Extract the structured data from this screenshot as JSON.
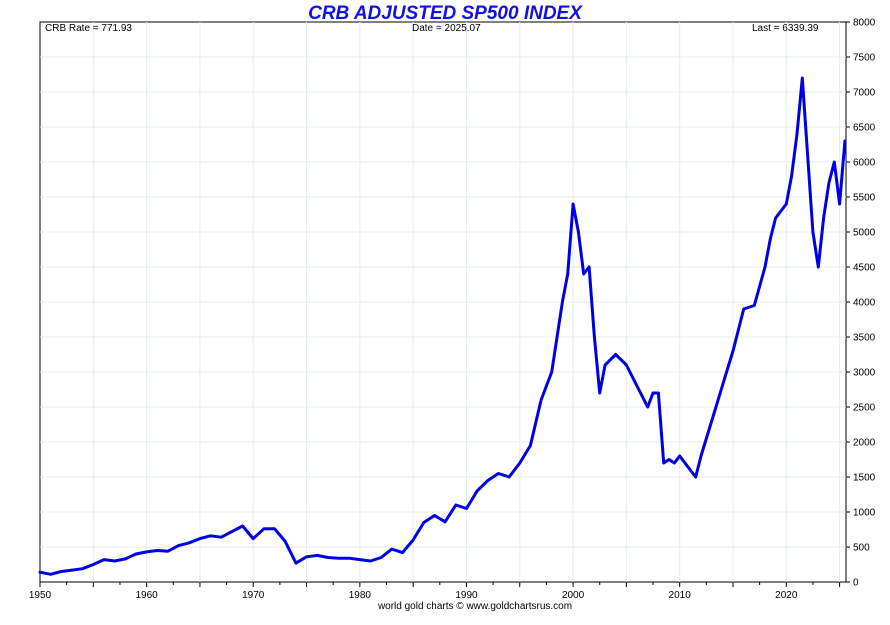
{
  "header": {
    "title": "CRB ADJUSTED SP500 INDEX",
    "crb_rate": "CRB Rate = 771.93",
    "date": "Date = 2025.07",
    "last": "Last = 6339.39"
  },
  "footer": {
    "credit": "world gold charts © www.goldchartsrus.com"
  },
  "chart_data": {
    "type": "line",
    "title": "CRB ADJUSTED SP500 INDEX",
    "xlabel": "",
    "ylabel": "",
    "xlim": [
      1950,
      2025.6
    ],
    "ylim": [
      0,
      8000
    ],
    "x_ticks": [
      1950,
      1960,
      1970,
      1980,
      1990,
      2000,
      2010,
      2020
    ],
    "y_ticks": [
      0,
      500,
      1000,
      1500,
      2000,
      2500,
      3000,
      3500,
      4000,
      4500,
      5000,
      5500,
      6000,
      6500,
      7000,
      7500,
      8000
    ],
    "y_axis_side": "right",
    "grid": true,
    "line_color": "#0000e6",
    "series": [
      {
        "x": [
          1950,
          1951,
          1952,
          1953,
          1954,
          1955,
          1956,
          1957,
          1958,
          1959,
          1960,
          1961,
          1962,
          1963,
          1964,
          1965,
          1966,
          1967,
          1968,
          1969,
          1970,
          1971,
          1972,
          1973,
          1974,
          1975,
          1976,
          1977,
          1978,
          1979,
          1980,
          1981,
          1982,
          1983,
          1984,
          1985,
          1986,
          1987,
          1988,
          1989,
          1990,
          1991,
          1992,
          1993,
          1994,
          1995,
          1996,
          1997,
          1998,
          1999,
          1999.5,
          2000,
          2000.5,
          2001,
          2001.5,
          2002,
          2002.5,
          2003,
          2004,
          2005,
          2006,
          2007,
          2007.5,
          2008,
          2008.5,
          2009,
          2009.5,
          2010,
          2011,
          2011.5,
          2012,
          2013,
          2014,
          2015,
          2016,
          2017,
          2018,
          2018.5,
          2019,
          2020,
          2020.5,
          2021,
          2021.5,
          2022,
          2022.5,
          2023,
          2023.5,
          2024,
          2024.5,
          2025,
          2025.5
        ],
        "y": [
          140,
          110,
          150,
          170,
          190,
          250,
          320,
          300,
          330,
          400,
          430,
          450,
          440,
          520,
          560,
          620,
          660,
          640,
          720,
          800,
          620,
          760,
          760,
          580,
          270,
          360,
          380,
          350,
          340,
          340,
          320,
          300,
          350,
          470,
          420,
          600,
          850,
          950,
          860,
          1100,
          1050,
          1300,
          1450,
          1550,
          1500,
          1700,
          1950,
          2600,
          3000,
          4000,
          4400,
          5400,
          5000,
          4400,
          4500,
          3500,
          2700,
          3100,
          3250,
          3100,
          2800,
          2500,
          2700,
          2700,
          1700,
          1750,
          1700,
          1800,
          1600,
          1500,
          1800,
          2300,
          2800,
          3300,
          3900,
          3950,
          4500,
          4900,
          5200,
          5400,
          5800,
          6400,
          7200,
          6100,
          5000,
          4500,
          5200,
          5700,
          6000,
          5400,
          6300
        ]
      }
    ]
  }
}
